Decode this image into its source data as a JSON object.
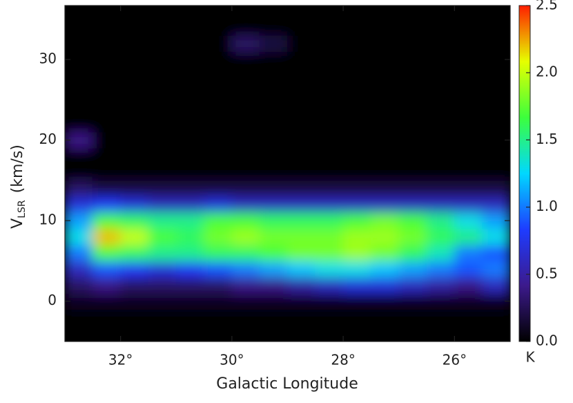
{
  "chart_data": {
    "type": "heatmap",
    "x_label": "Galactic Longitude",
    "y_label": "V",
    "y_label_sub": "LSR",
    "y_label_unit": "(km/s)",
    "colorbar_label": "K",
    "xlim": [
      33,
      25
    ],
    "ylim": [
      -5,
      36.7
    ],
    "xticks": [
      {
        "value": 32,
        "label": "32°"
      },
      {
        "value": 30,
        "label": "30°"
      },
      {
        "value": 28,
        "label": "28°"
      },
      {
        "value": 26,
        "label": "26°"
      }
    ],
    "yticks": [
      0,
      10,
      20,
      30
    ],
    "zlim": [
      0,
      2.5
    ],
    "zticks": [
      {
        "value": 0,
        "label": "0.0"
      },
      {
        "value": 0.5,
        "label": "0.5"
      },
      {
        "value": 1,
        "label": "1.0"
      },
      {
        "value": 1.5,
        "label": "1.5"
      },
      {
        "value": 2,
        "label": "2.0"
      },
      {
        "value": 2.5,
        "label": "2.5"
      }
    ],
    "colormap": [
      "#000000",
      "#3c1a8c",
      "#1e3cff",
      "#00d8ff",
      "#3cff3c",
      "#e6ff00",
      "#ff1e00"
    ],
    "x": [
      32.75,
      32.25,
      31.75,
      31.25,
      30.75,
      30.25,
      29.75,
      29.25,
      28.75,
      28.25,
      27.75,
      27.25,
      26.75,
      26.25,
      25.75,
      25.25
    ],
    "y": [
      -4,
      -2,
      0,
      2,
      4,
      6,
      8,
      10,
      12,
      14,
      16,
      18,
      20,
      22,
      24,
      26,
      28,
      30,
      32,
      34,
      36
    ],
    "z": [
      [
        0,
        0,
        0,
        0,
        0,
        0,
        0,
        0,
        0,
        0,
        0,
        0,
        0,
        0,
        0,
        0
      ],
      [
        0,
        0,
        0,
        0,
        0,
        0,
        0,
        0,
        0,
        0,
        0,
        0,
        0,
        0,
        0,
        0
      ],
      [
        0.1,
        0.1,
        0.1,
        0.1,
        0.1,
        0.1,
        0.1,
        0.1,
        0.1,
        0.1,
        0.1,
        0.1,
        0.1,
        0.1,
        0.1,
        0.1
      ],
      [
        0.3,
        0.4,
        0.3,
        0.3,
        0.3,
        0.3,
        0.4,
        0.4,
        0.5,
        0.6,
        0.7,
        0.7,
        0.6,
        0.5,
        0.4,
        0.6
      ],
      [
        0.6,
        0.9,
        0.8,
        0.7,
        0.8,
        0.9,
        1.0,
        1.1,
        1.2,
        1.3,
        1.3,
        1.2,
        1.1,
        1.0,
        0.9,
        1.0
      ],
      [
        1.0,
        1.7,
        1.6,
        1.5,
        1.5,
        1.6,
        1.6,
        1.7,
        1.8,
        1.8,
        1.9,
        1.8,
        1.6,
        1.4,
        1.0,
        0.9
      ],
      [
        1.3,
        2.2,
        2.0,
        1.7,
        1.6,
        1.8,
        1.9,
        1.8,
        1.8,
        1.8,
        1.9,
        1.9,
        1.8,
        1.6,
        1.5,
        1.3
      ],
      [
        1.1,
        1.7,
        1.6,
        1.5,
        1.5,
        1.7,
        1.7,
        1.6,
        1.6,
        1.6,
        1.7,
        1.8,
        1.7,
        1.5,
        1.3,
        1.1
      ],
      [
        0.7,
        0.8,
        0.7,
        0.6,
        0.6,
        0.7,
        0.6,
        0.6,
        0.6,
        0.6,
        0.6,
        0.6,
        0.6,
        0.6,
        0.6,
        0.6
      ],
      [
        0.3,
        0.2,
        0.2,
        0.2,
        0.2,
        0.2,
        0.2,
        0.2,
        0.2,
        0.2,
        0.2,
        0.2,
        0.2,
        0.2,
        0.2,
        0.2
      ],
      [
        0,
        0,
        0,
        0,
        0,
        0,
        0,
        0,
        0,
        0,
        0,
        0,
        0,
        0,
        0,
        0
      ],
      [
        0,
        0,
        0,
        0,
        0,
        0,
        0,
        0,
        0,
        0,
        0,
        0,
        0,
        0,
        0,
        0
      ],
      [
        0.4,
        0,
        0,
        0,
        0,
        0,
        0,
        0,
        0,
        0,
        0,
        0,
        0,
        0,
        0,
        0
      ],
      [
        0,
        0,
        0,
        0,
        0,
        0,
        0,
        0,
        0,
        0,
        0,
        0,
        0,
        0,
        0,
        0
      ],
      [
        0,
        0,
        0,
        0,
        0,
        0,
        0,
        0,
        0,
        0,
        0,
        0,
        0,
        0,
        0,
        0
      ],
      [
        0,
        0,
        0,
        0,
        0,
        0,
        0,
        0,
        0,
        0,
        0,
        0,
        0,
        0,
        0,
        0
      ],
      [
        0,
        0,
        0,
        0,
        0,
        0,
        0,
        0,
        0,
        0,
        0,
        0,
        0,
        0,
        0,
        0
      ],
      [
        0,
        0,
        0,
        0,
        0,
        0,
        0,
        0,
        0,
        0,
        0,
        0,
        0,
        0,
        0,
        0
      ],
      [
        0,
        0,
        0,
        0,
        0,
        0,
        0.3,
        0.2,
        0,
        0,
        0,
        0,
        0,
        0,
        0,
        0
      ],
      [
        0,
        0,
        0,
        0,
        0,
        0,
        0,
        0,
        0,
        0,
        0,
        0,
        0,
        0,
        0,
        0
      ],
      [
        0,
        0,
        0,
        0,
        0,
        0,
        0,
        0,
        0,
        0,
        0,
        0,
        0,
        0,
        0,
        0
      ]
    ]
  }
}
